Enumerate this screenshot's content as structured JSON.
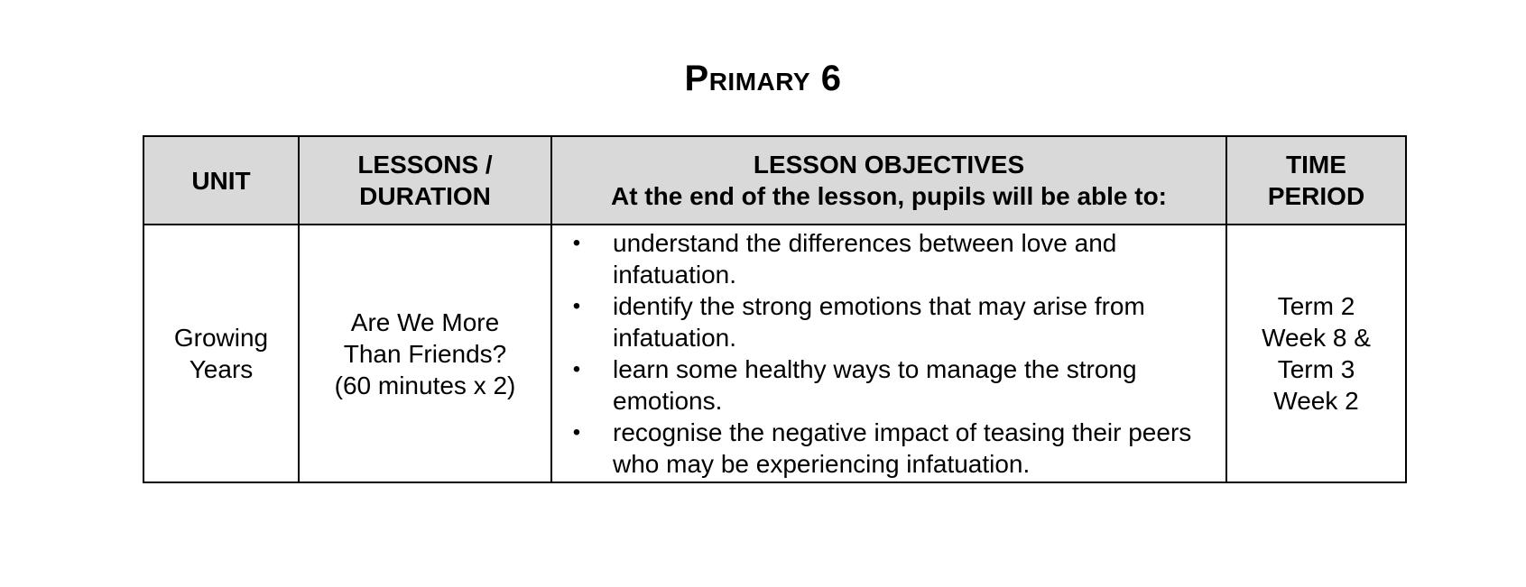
{
  "title": "Primary 6",
  "table": {
    "headers": {
      "unit": [
        "UNIT"
      ],
      "lessons": [
        "LESSONS /",
        "DURATION"
      ],
      "objectives": [
        "LESSON OBJECTIVES",
        "At the end of the lesson, pupils will be able to:"
      ],
      "time": [
        "TIME",
        "PERIOD"
      ]
    },
    "rows": [
      {
        "unit": [
          "Growing",
          "Years"
        ],
        "lesson": [
          "Are We More",
          "Than Friends?",
          "(60 minutes x 2)"
        ],
        "objectives": [
          "understand the differences between love and infatuation.",
          "identify the strong emotions that may arise from infatuation.",
          "learn some healthy ways to manage the strong emotions.",
          "recognise the negative impact of teasing their peers who may be experiencing infatuation."
        ],
        "time": [
          "Term 2",
          "Week 8 &",
          "Term 3",
          "Week 2"
        ]
      }
    ]
  },
  "bullet_symbol": "•"
}
